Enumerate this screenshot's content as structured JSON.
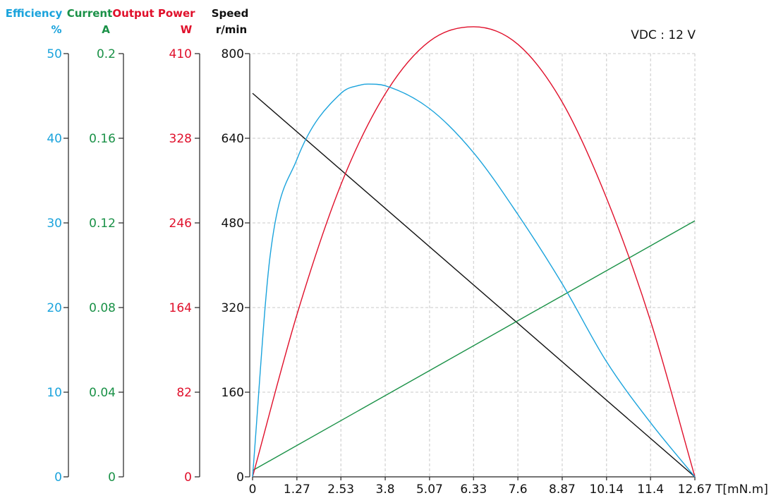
{
  "colors": {
    "efficiency": "#1aa3dc",
    "current": "#1a9147",
    "power": "#e0102b",
    "speed": "#111111",
    "grid": "#c8c8c8"
  },
  "headers": {
    "efficiency": {
      "title": "Efficiency",
      "unit": "%"
    },
    "current": {
      "title": "Current",
      "unit": "A"
    },
    "power": {
      "title": "Output Power",
      "unit": "W"
    },
    "speed": {
      "title": "Speed",
      "unit": "r/min"
    }
  },
  "annotation": "VDC : 12 V",
  "chart_data": {
    "type": "line",
    "grid": true,
    "xlabel": "T[mN.m]",
    "xlim": [
      0,
      12.67
    ],
    "x_ticks": [
      "0",
      "1.27",
      "2.53",
      "3.8",
      "5.07",
      "6.33",
      "7.6",
      "8.87",
      "10.14",
      "11.4",
      "12.67"
    ],
    "axes": {
      "efficiency": {
        "ylim": [
          0,
          50
        ],
        "ticks": [
          "50",
          "40",
          "30",
          "20",
          "10",
          "0"
        ]
      },
      "current": {
        "ylim": [
          0,
          0.2
        ],
        "ticks": [
          "0.2",
          "0.16",
          "0.12",
          "0.08",
          "0.04",
          "0"
        ]
      },
      "power": {
        "ylim": [
          0,
          410
        ],
        "ticks": [
          "410",
          "328",
          "246",
          "164",
          "82",
          "0"
        ]
      },
      "speed": {
        "ylim": [
          0,
          800
        ],
        "ticks": [
          "800",
          "640",
          "480",
          "320",
          "160",
          "0"
        ]
      }
    },
    "series": [
      {
        "axis": "speed",
        "x": [
          0,
          12.67
        ],
        "values": [
          725,
          0
        ]
      },
      {
        "axis": "current",
        "x": [
          0,
          12.67
        ],
        "values": [
          0.003,
          0.121
        ]
      },
      {
        "axis": "power",
        "x": [
          0,
          1.27,
          2.53,
          3.8,
          5.07,
          6.33,
          7.6,
          8.87,
          10.14,
          11.4,
          12.67
        ],
        "values": [
          0,
          157,
          283,
          371,
          422,
          436,
          419,
          363,
          270,
          151,
          0
        ]
      },
      {
        "axis": "efficiency",
        "x": [
          0,
          0.5,
          1.27,
          2.53,
          3.1,
          3.3,
          3.8,
          5.07,
          6.33,
          7.6,
          8.87,
          10.14,
          11.4,
          12.67
        ],
        "values": [
          0,
          26,
          37.5,
          45.3,
          46.3,
          46.4,
          46.2,
          43.5,
          38.3,
          31.0,
          22.8,
          13.6,
          6.4,
          0
        ]
      }
    ]
  }
}
